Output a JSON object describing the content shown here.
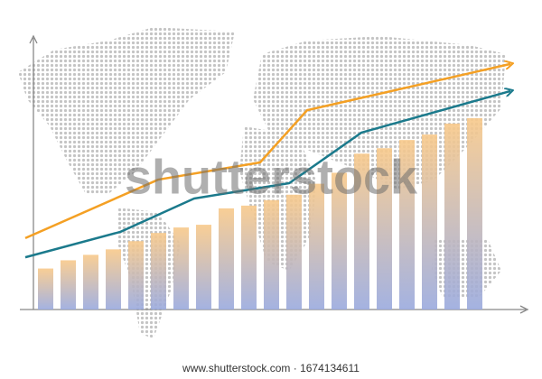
{
  "chart_data": {
    "type": "bar",
    "watermark": "shutterstock",
    "footer": "www.shutterstock.com · 1674134611",
    "categories": [
      null,
      null,
      null,
      null,
      null,
      null,
      null,
      null,
      null,
      null,
      null,
      null,
      null,
      null,
      null,
      null,
      null,
      null,
      null,
      null
    ],
    "values": [
      15,
      18,
      20,
      22,
      25,
      28,
      30,
      31,
      37,
      38,
      40,
      42,
      46,
      50,
      57,
      59,
      62,
      64,
      68,
      70
    ],
    "bar_colors": [
      "#f8c98a",
      "#9aaade"
    ],
    "ylim": [
      0,
      100
    ],
    "xlim": [
      0,
      100
    ],
    "series": [
      {
        "type": "line",
        "color": "#f4a024",
        "x": [
          0,
          27.4,
          48.4,
          58.1,
          100
        ],
        "values": [
          26.1,
          47.5,
          53.8,
          72.9,
          89.8
        ]
      },
      {
        "type": "line",
        "color": "#1b7a8c",
        "x": [
          0,
          19.6,
          34.8,
          54.4,
          69.3,
          100
        ],
        "values": [
          19.1,
          28.4,
          40.6,
          46.2,
          64.7,
          79.9
        ]
      }
    ]
  }
}
